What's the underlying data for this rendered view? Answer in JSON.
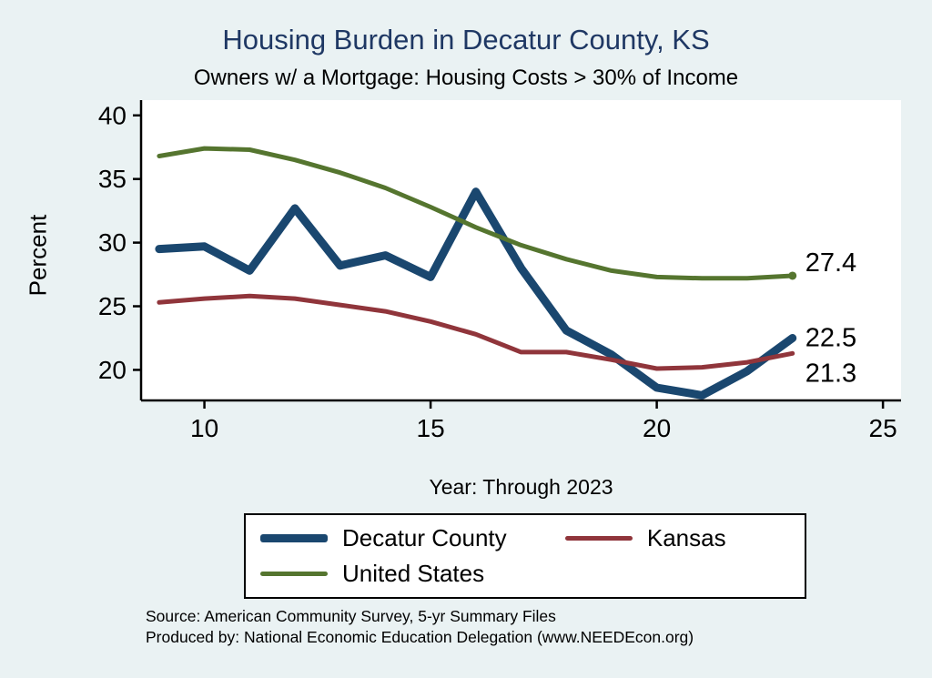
{
  "chart_data": {
    "type": "line",
    "title": "Housing Burden in Decatur County, KS",
    "subtitle": "Owners w/ a Mortgage: Housing Costs > 30% of Income",
    "xlabel": "Year: Through 2023",
    "ylabel": "Percent",
    "x": [
      9,
      10,
      11,
      12,
      13,
      14,
      15,
      16,
      17,
      18,
      19,
      20,
      21,
      22,
      23
    ],
    "series": [
      {
        "name": "Decatur County",
        "color": "#1a476f",
        "width": 9,
        "values": [
          29.5,
          29.7,
          27.8,
          32.7,
          28.2,
          29.0,
          27.3,
          34.0,
          28.0,
          23.1,
          21.2,
          18.6,
          18.0,
          19.9,
          22.5
        ],
        "end_label": "22.5",
        "end_label_offset": 0
      },
      {
        "name": "Kansas",
        "color": "#90353b",
        "width": 5,
        "values": [
          25.3,
          25.6,
          25.8,
          25.6,
          25.1,
          24.6,
          23.8,
          22.8,
          21.4,
          21.4,
          20.8,
          20.1,
          20.2,
          20.6,
          21.3
        ],
        "end_label": "21.3",
        "end_label_offset": 22
      },
      {
        "name": "United States",
        "color": "#55752f",
        "width": 5,
        "values": [
          36.8,
          37.4,
          37.3,
          36.5,
          35.5,
          34.3,
          32.8,
          31.2,
          29.8,
          28.7,
          27.8,
          27.3,
          27.2,
          27.2,
          27.4
        ],
        "end_label": "27.4",
        "end_label_offset": -14,
        "end_marker": true
      }
    ],
    "xlim": [
      8.6,
      25.4
    ],
    "ylim": [
      17.6,
      41.2
    ],
    "xticks": [
      10,
      15,
      20,
      25
    ],
    "yticks": [
      20,
      25,
      30,
      35,
      40
    ],
    "grid": false,
    "legend_position": "bottom"
  },
  "source": {
    "line1": "Source: American Community Survey, 5-yr Summary Files",
    "line2": "Produced by: National Economic Education Delegation (www.NEEDEcon.org)"
  },
  "colors": {
    "background": "#eaf2f3",
    "plot_background": "#ffffff",
    "title": "#1f3864",
    "axis": "#000000"
  }
}
